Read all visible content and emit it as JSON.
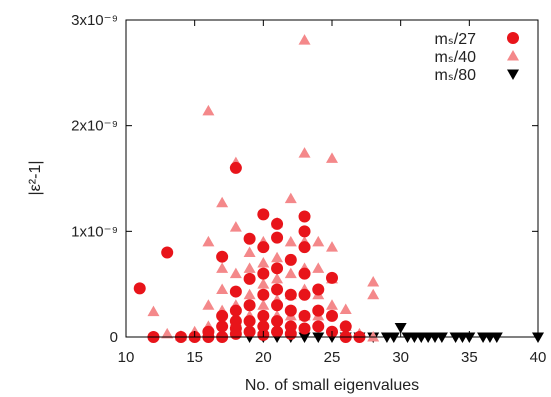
{
  "chart_data": {
    "type": "scatter",
    "xlabel": "No. of small eigenvalues",
    "ylabel": "|ε²-1|",
    "xlim": [
      10,
      40
    ],
    "ylim": [
      0,
      3e-09
    ],
    "grid": false,
    "legend_position": "top-right",
    "x_ticks": [
      "10",
      "15",
      "20",
      "25",
      "30",
      "35",
      "40"
    ],
    "y_ticks": [
      {
        "value": 0,
        "label": "0"
      },
      {
        "value": 1e-09,
        "label": "1x10⁻⁹"
      },
      {
        "value": 2e-09,
        "label": "2x10⁻⁹"
      },
      {
        "value": 3e-09,
        "label": "3x10⁻⁹"
      }
    ],
    "series": [
      {
        "name": "mₛ/27",
        "marker": "circle",
        "color": "#e8141a",
        "points": [
          [
            11,
            4.6e-10
          ],
          [
            12,
            0.0
          ],
          [
            13,
            8e-10
          ],
          [
            14,
            0.0
          ],
          [
            15,
            0.0
          ],
          [
            16,
            0.0
          ],
          [
            16,
            5e-11
          ],
          [
            17,
            0.0
          ],
          [
            17,
            1e-10
          ],
          [
            17,
            7.6e-10
          ],
          [
            17,
            2e-10
          ],
          [
            18,
            1.6e-09
          ],
          [
            18,
            4.3e-10
          ],
          [
            18,
            2.5e-10
          ],
          [
            18,
            1.5e-10
          ],
          [
            18,
            8e-11
          ],
          [
            18,
            3e-11
          ],
          [
            19,
            9.3e-10
          ],
          [
            19,
            5.5e-10
          ],
          [
            19,
            3e-10
          ],
          [
            19,
            1.5e-10
          ],
          [
            19,
            5e-11
          ],
          [
            20,
            1.16e-09
          ],
          [
            20,
            8.5e-10
          ],
          [
            20,
            6e-10
          ],
          [
            20,
            4e-10
          ],
          [
            20,
            2e-10
          ],
          [
            20,
            1e-10
          ],
          [
            20,
            2e-11
          ],
          [
            21,
            1.07e-09
          ],
          [
            21,
            9.4e-10
          ],
          [
            21,
            6.5e-10
          ],
          [
            21,
            4.5e-10
          ],
          [
            21,
            3e-10
          ],
          [
            21,
            1.5e-10
          ],
          [
            21,
            5e-11
          ],
          [
            22,
            7.3e-10
          ],
          [
            22,
            4e-10
          ],
          [
            22,
            2.5e-10
          ],
          [
            22,
            1e-10
          ],
          [
            22,
            3e-11
          ],
          [
            23,
            1.14e-09
          ],
          [
            23,
            1e-09
          ],
          [
            23,
            8.5e-10
          ],
          [
            23,
            6e-10
          ],
          [
            23,
            4e-10
          ],
          [
            23,
            2e-10
          ],
          [
            23,
            8e-11
          ],
          [
            24,
            4.5e-10
          ],
          [
            24,
            2.5e-10
          ],
          [
            24,
            1e-10
          ],
          [
            25,
            5.6e-10
          ],
          [
            25,
            2e-10
          ],
          [
            25,
            5e-11
          ],
          [
            26,
            1e-10
          ],
          [
            26,
            0.0
          ],
          [
            27,
            0.0
          ]
        ]
      },
      {
        "name": "mₛ/40",
        "marker": "triangle-up",
        "color": "#f4888a",
        "points": [
          [
            12,
            2.4e-10
          ],
          [
            13,
            3e-11
          ],
          [
            14,
            1e-11
          ],
          [
            15,
            5e-11
          ],
          [
            15,
            1e-11
          ],
          [
            16,
            2.14e-09
          ],
          [
            16,
            9e-10
          ],
          [
            16,
            3e-10
          ],
          [
            16,
            1e-10
          ],
          [
            17,
            1.27e-09
          ],
          [
            17,
            6.5e-10
          ],
          [
            17,
            4.5e-10
          ],
          [
            17,
            2.5e-10
          ],
          [
            18,
            1.65e-09
          ],
          [
            18,
            1.04e-09
          ],
          [
            18,
            6e-10
          ],
          [
            18,
            3e-10
          ],
          [
            18,
            1.5e-10
          ],
          [
            19,
            8e-10
          ],
          [
            19,
            6.5e-10
          ],
          [
            19,
            4e-10
          ],
          [
            19,
            2e-10
          ],
          [
            19,
            8e-11
          ],
          [
            20,
            9e-10
          ],
          [
            20,
            7e-10
          ],
          [
            20,
            5e-10
          ],
          [
            20,
            3e-10
          ],
          [
            20,
            1.5e-10
          ],
          [
            21,
            1.08e-09
          ],
          [
            21,
            7.5e-10
          ],
          [
            21,
            5.5e-10
          ],
          [
            21,
            3.5e-10
          ],
          [
            21,
            2e-10
          ],
          [
            22,
            1.31e-09
          ],
          [
            22,
            9e-10
          ],
          [
            22,
            6e-10
          ],
          [
            22,
            4e-10
          ],
          [
            22,
            2e-10
          ],
          [
            23,
            2.81e-09
          ],
          [
            23,
            1.74e-09
          ],
          [
            23,
            9e-10
          ],
          [
            23,
            6.5e-10
          ],
          [
            23,
            4.5e-10
          ],
          [
            23,
            2e-10
          ],
          [
            24,
            9e-10
          ],
          [
            24,
            6.5e-10
          ],
          [
            24,
            4e-10
          ],
          [
            24,
            2e-10
          ],
          [
            25,
            1.69e-09
          ],
          [
            25,
            8.5e-10
          ],
          [
            25,
            5.5e-10
          ],
          [
            25,
            3e-10
          ],
          [
            26,
            2.6e-10
          ],
          [
            26,
            1e-10
          ],
          [
            27,
            3e-11
          ],
          [
            28,
            5.2e-10
          ],
          [
            28,
            4e-10
          ],
          [
            28,
            0.0
          ]
        ]
      },
      {
        "name": "mₛ/80",
        "marker": "triangle-down",
        "color": "#000000",
        "points": [
          [
            19,
            0.0
          ],
          [
            20,
            0.0
          ],
          [
            21,
            0.0
          ],
          [
            22,
            0.0
          ],
          [
            23,
            0.0
          ],
          [
            24,
            0.0
          ],
          [
            25,
            0.0
          ],
          [
            26,
            0.0
          ],
          [
            27,
            0.0
          ],
          [
            28,
            0.0
          ],
          [
            29,
            0.0
          ],
          [
            29.5,
            0.0
          ],
          [
            30,
            9e-11
          ],
          [
            30.5,
            0.0
          ],
          [
            31,
            0.0
          ],
          [
            31.5,
            0.0
          ],
          [
            32,
            0.0
          ],
          [
            32.5,
            0.0
          ],
          [
            33,
            0.0
          ],
          [
            34,
            0.0
          ],
          [
            34.5,
            0.0
          ],
          [
            35,
            0.0
          ],
          [
            36,
            0.0
          ],
          [
            36.5,
            0.0
          ],
          [
            37,
            0.0
          ],
          [
            40,
            0.0
          ]
        ]
      }
    ]
  }
}
